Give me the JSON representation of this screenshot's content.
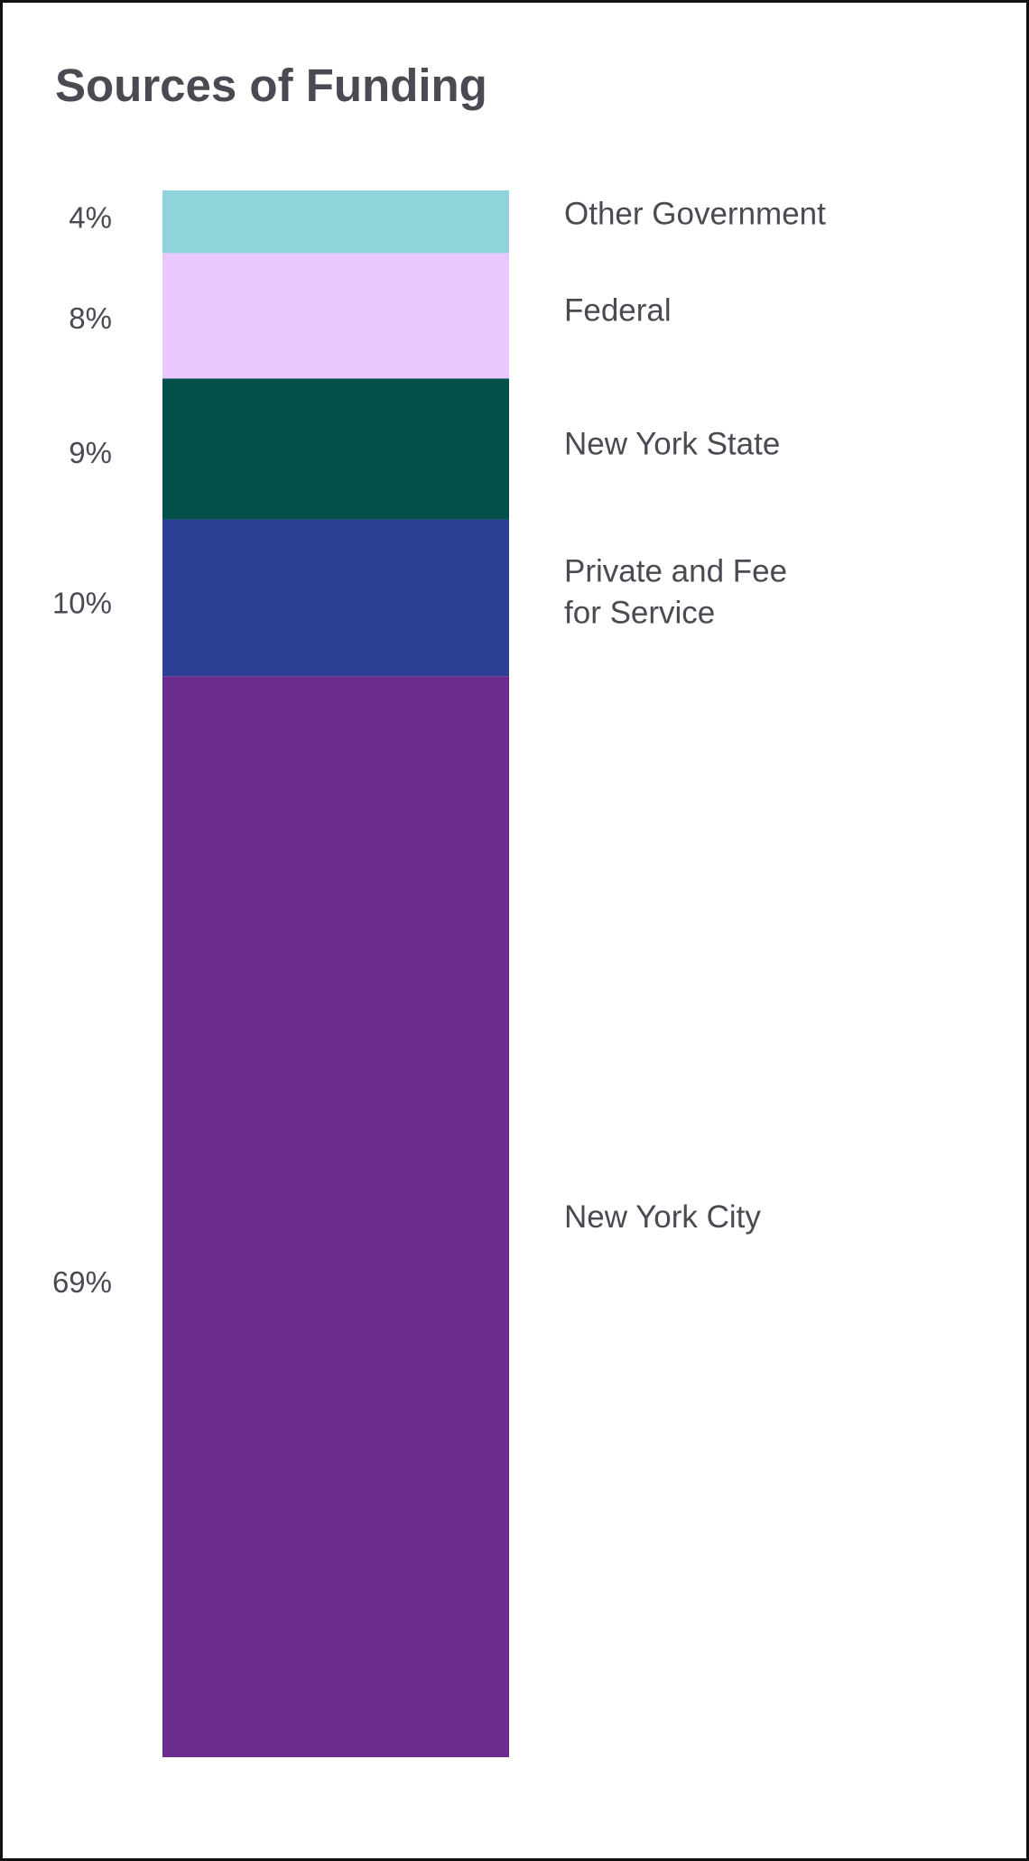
{
  "title": "Sources of Funding",
  "chart_data": {
    "type": "bar",
    "stacked": true,
    "unit": "%",
    "categories": [
      "New York City",
      "Private and Fee for Service",
      "New York State",
      "Federal",
      "Other Government"
    ],
    "values": [
      69,
      10,
      9,
      8,
      4
    ],
    "value_labels": [
      "69%",
      "10%",
      "9%",
      "8%",
      "4%"
    ],
    "category_label_lines": [
      [
        "New York City"
      ],
      [
        "Private and Fee",
        "for Service"
      ],
      [
        "New York State"
      ],
      [
        "Federal"
      ],
      [
        "Other Government"
      ]
    ],
    "colors": [
      "#6b2c8e",
      "#2c4096",
      "#03504a",
      "#e8c8fe",
      "#8fd4da"
    ],
    "legend": "labels-right-of-bar",
    "grid": false
  }
}
